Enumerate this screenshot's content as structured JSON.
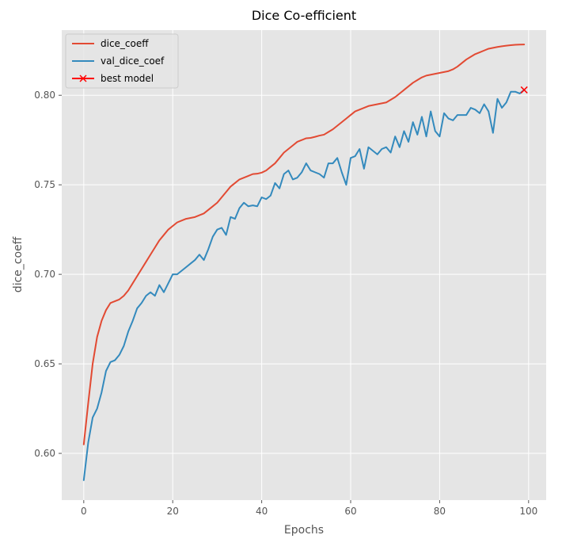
{
  "chart_data": {
    "type": "line",
    "title": "Dice Co-efficient",
    "xlabel": "Epochs",
    "ylabel": "dice_coeff",
    "xlim": [
      -4.95,
      103.95
    ],
    "ylim": [
      0.5739,
      0.8364
    ],
    "xticks": [
      0,
      20,
      40,
      60,
      80,
      100
    ],
    "yticks": [
      0.6,
      0.65,
      0.7,
      0.75,
      0.8
    ],
    "xtick_labels": [
      "0",
      "20",
      "40",
      "60",
      "80",
      "100"
    ],
    "ytick_labels": [
      "0.60",
      "0.65",
      "0.70",
      "0.75",
      "0.80"
    ],
    "grid": true,
    "legend_position": "upper-left",
    "style": {
      "background": "#e5e5e5",
      "grid_color": "#ffffff",
      "series_colors": [
        "#e24a33",
        "#348abd"
      ],
      "marker_color": "#ff0000"
    },
    "series": [
      {
        "name": "dice_coeff",
        "x": [
          0,
          1,
          2,
          3,
          4,
          5,
          6,
          7,
          8,
          9,
          10,
          11,
          12,
          13,
          14,
          15,
          16,
          17,
          18,
          19,
          20,
          21,
          22,
          23,
          24,
          25,
          26,
          27,
          28,
          29,
          30,
          31,
          32,
          33,
          34,
          35,
          36,
          37,
          38,
          39,
          40,
          41,
          42,
          43,
          44,
          45,
          46,
          47,
          48,
          49,
          50,
          51,
          52,
          53,
          54,
          55,
          56,
          57,
          58,
          59,
          60,
          61,
          62,
          63,
          64,
          65,
          66,
          67,
          68,
          69,
          70,
          71,
          72,
          73,
          74,
          75,
          76,
          77,
          78,
          79,
          80,
          81,
          82,
          83,
          84,
          85,
          86,
          87,
          88,
          89,
          90,
          91,
          92,
          93,
          94,
          95,
          96,
          97,
          98,
          99
        ],
        "y": [
          0.605,
          0.628,
          0.65,
          0.665,
          0.674,
          0.68,
          0.684,
          0.685,
          0.686,
          0.688,
          0.691,
          0.695,
          0.699,
          0.703,
          0.707,
          0.711,
          0.715,
          0.719,
          0.722,
          0.725,
          0.727,
          0.729,
          0.73,
          0.731,
          0.7315,
          0.732,
          0.733,
          0.734,
          0.736,
          0.738,
          0.74,
          0.743,
          0.746,
          0.749,
          0.751,
          0.753,
          0.754,
          0.755,
          0.756,
          0.7562,
          0.7568,
          0.758,
          0.76,
          0.762,
          0.765,
          0.768,
          0.77,
          0.772,
          0.774,
          0.775,
          0.776,
          0.7762,
          0.7768,
          0.7775,
          0.778,
          0.7795,
          0.781,
          0.783,
          0.785,
          0.787,
          0.789,
          0.791,
          0.792,
          0.793,
          0.794,
          0.7945,
          0.795,
          0.7955,
          0.796,
          0.7975,
          0.799,
          0.801,
          0.803,
          0.805,
          0.807,
          0.8085,
          0.81,
          0.811,
          0.8115,
          0.812,
          0.8125,
          0.813,
          0.8135,
          0.8145,
          0.816,
          0.818,
          0.82,
          0.8215,
          0.823,
          0.824,
          0.825,
          0.826,
          0.8265,
          0.827,
          0.8274,
          0.8277,
          0.828,
          0.8282,
          0.8283,
          0.8284
        ]
      },
      {
        "name": "val_dice_coef",
        "x": [
          0,
          1,
          2,
          3,
          4,
          5,
          6,
          7,
          8,
          9,
          10,
          11,
          12,
          13,
          14,
          15,
          16,
          17,
          18,
          19,
          20,
          21,
          22,
          23,
          24,
          25,
          26,
          27,
          28,
          29,
          30,
          31,
          32,
          33,
          34,
          35,
          36,
          37,
          38,
          39,
          40,
          41,
          42,
          43,
          44,
          45,
          46,
          47,
          48,
          49,
          50,
          51,
          52,
          53,
          54,
          55,
          56,
          57,
          58,
          59,
          60,
          61,
          62,
          63,
          64,
          65,
          66,
          67,
          68,
          69,
          70,
          71,
          72,
          73,
          74,
          75,
          76,
          77,
          78,
          79,
          80,
          81,
          82,
          83,
          84,
          85,
          86,
          87,
          88,
          89,
          90,
          91,
          92,
          93,
          94,
          95,
          96,
          97,
          98,
          99
        ],
        "y": [
          0.585,
          0.606,
          0.62,
          0.625,
          0.634,
          0.646,
          0.651,
          0.652,
          0.655,
          0.66,
          0.668,
          0.674,
          0.681,
          0.684,
          0.688,
          0.69,
          0.688,
          0.694,
          0.69,
          0.695,
          0.7,
          0.7,
          0.702,
          0.704,
          0.706,
          0.708,
          0.711,
          0.708,
          0.714,
          0.721,
          0.725,
          0.726,
          0.722,
          0.732,
          0.731,
          0.737,
          0.74,
          0.738,
          0.7385,
          0.738,
          0.743,
          0.742,
          0.744,
          0.751,
          0.748,
          0.756,
          0.758,
          0.753,
          0.754,
          0.757,
          0.762,
          0.758,
          0.757,
          0.756,
          0.754,
          0.762,
          0.762,
          0.765,
          0.757,
          0.75,
          0.765,
          0.766,
          0.77,
          0.759,
          0.771,
          0.769,
          0.767,
          0.77,
          0.771,
          0.768,
          0.777,
          0.771,
          0.78,
          0.774,
          0.785,
          0.778,
          0.788,
          0.777,
          0.791,
          0.78,
          0.777,
          0.79,
          0.787,
          0.786,
          0.789,
          0.789,
          0.789,
          0.793,
          0.792,
          0.79,
          0.795,
          0.791,
          0.779,
          0.798,
          0.793,
          0.796,
          0.802,
          0.802,
          0.801,
          0.803
        ]
      }
    ],
    "markers": [
      {
        "name": "best model",
        "x": 99,
        "y": 0.803,
        "symbol": "x"
      }
    ]
  }
}
